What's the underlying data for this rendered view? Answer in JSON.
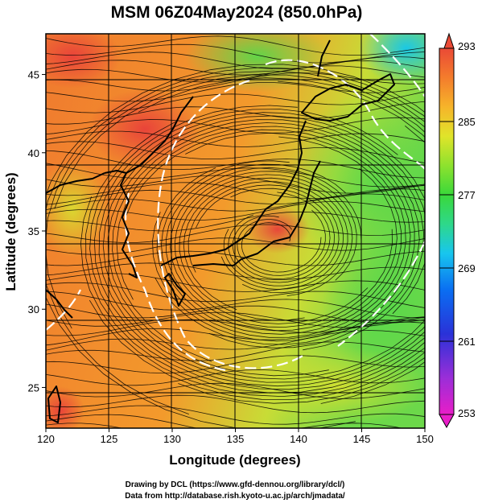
{
  "title": "MSM 06Z04May2024 (850.0hPa)",
  "credits": {
    "line1": "Drawing by DCL (https://www.gfd-dennou.org/library/dcl/)",
    "line2": "Data from http://database.rish.kyoto-u.ac.jp/arch/jmadata/"
  },
  "map": {
    "xlabel": "Longitude (degrees)",
    "ylabel": "Latitude  (degrees)",
    "xlim": [
      120,
      150
    ],
    "ylim": [
      22.4,
      47.6
    ],
    "xticks": [
      {
        "value": 120,
        "label": "120"
      },
      {
        "value": 125,
        "label": "125"
      },
      {
        "value": 130,
        "label": "130"
      },
      {
        "value": 135,
        "label": "135"
      },
      {
        "value": 140,
        "label": "140"
      },
      {
        "value": 145,
        "label": "145"
      },
      {
        "value": 150,
        "label": "150"
      }
    ],
    "yticks": [
      {
        "value": 25,
        "label": "25"
      },
      {
        "value": 30,
        "label": "30"
      },
      {
        "value": 35,
        "label": "35"
      },
      {
        "value": 40,
        "label": "40"
      },
      {
        "value": 45,
        "label": "45"
      }
    ],
    "grid": true,
    "field": "temperature (K), shaded",
    "overlays": [
      "wind streamlines",
      "white dashed contours",
      "coastlines"
    ]
  },
  "colorbar": {
    "min": 253,
    "max": 293,
    "ticks": [
      {
        "value": 293,
        "label": "293"
      },
      {
        "value": 285,
        "label": "285"
      },
      {
        "value": 277,
        "label": "277"
      },
      {
        "value": 269,
        "label": "269"
      },
      {
        "value": 261,
        "label": "261"
      },
      {
        "value": 253,
        "label": "253"
      }
    ],
    "colors": [
      "#e81ec8",
      "#9a2ed8",
      "#2a32d8",
      "#0a6ef2",
      "#18c6ee",
      "#2ed88a",
      "#3ad83a",
      "#8ee22e",
      "#e0e42a",
      "#f6b42a",
      "#f47c2c",
      "#ea4a36"
    ]
  }
}
